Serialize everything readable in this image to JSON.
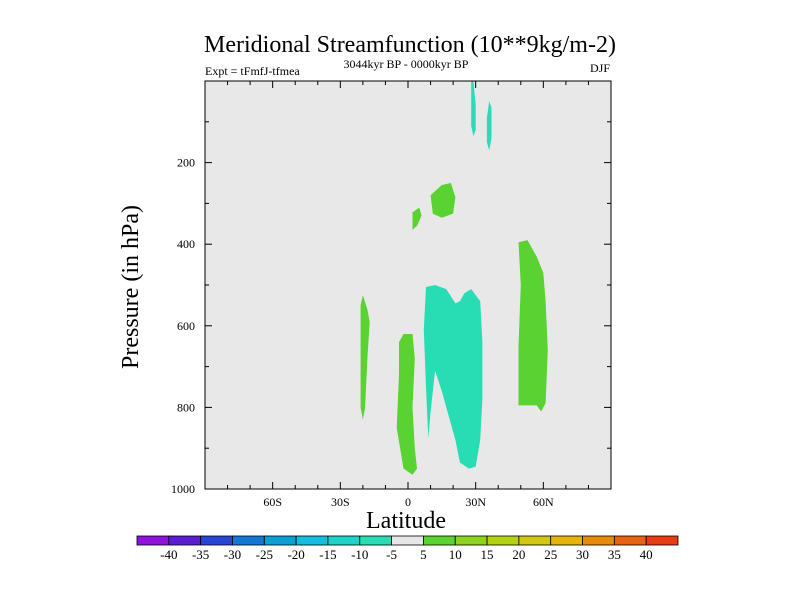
{
  "chart_data": {
    "type": "contour",
    "title": "Meridional Streamfunction (10**9kg/m-2)",
    "left_label": "Expt = tFmfJ-tfmea",
    "center_label": "3044kyr BP - 0000kyr BP",
    "right_label": "DJF",
    "xlabel": "Latitude",
    "ylabel": "Pressure (in hPa)",
    "xlim": [
      -90,
      90
    ],
    "ylim": [
      1000,
      0
    ],
    "x_ticks": [
      {
        "value": -60,
        "label": "60S"
      },
      {
        "value": -30,
        "label": "30S"
      },
      {
        "value": 0,
        "label": "0"
      },
      {
        "value": 30,
        "label": "30N"
      },
      {
        "value": 60,
        "label": "60N"
      }
    ],
    "y_ticks": [
      {
        "value": 200,
        "label": "200"
      },
      {
        "value": 400,
        "label": "400"
      },
      {
        "value": 600,
        "label": "600"
      },
      {
        "value": 800,
        "label": "800"
      },
      {
        "value": 1000,
        "label": "1000"
      }
    ],
    "background_color": "#e8e8e8",
    "colorbar": {
      "levels": [
        "-40",
        "-35",
        "-30",
        "-25",
        "-20",
        "-15",
        "-10",
        "-5",
        "5",
        "10",
        "15",
        "20",
        "25",
        "30",
        "35",
        "40"
      ],
      "colors": [
        "#8c14dc",
        "#5a1ed2",
        "#2846d2",
        "#1478d2",
        "#0aa0d2",
        "#14bedc",
        "#1ed2c8",
        "#28dcb4",
        "#e6e6e6",
        "#5ad232",
        "#8cd21e",
        "#b4d214",
        "#d2c814",
        "#e6b40a",
        "#e68c0a",
        "#e66414",
        "#e63c14"
      ]
    },
    "regions": [
      {
        "name": "sh-positive-cell",
        "color": "#5ad232",
        "points": [
          [
            -21,
            550
          ],
          [
            -20,
            525
          ],
          [
            -18,
            560
          ],
          [
            -17,
            590
          ],
          [
            -18,
            680
          ],
          [
            -19,
            800
          ],
          [
            -20,
            830
          ],
          [
            -21,
            800
          ],
          [
            -21,
            620
          ]
        ]
      },
      {
        "name": "equatorial-positive-cell",
        "color": "#5ad232",
        "points": [
          [
            -4,
            640
          ],
          [
            -2,
            620
          ],
          [
            2,
            620
          ],
          [
            3,
            680
          ],
          [
            2,
            800
          ],
          [
            3,
            900
          ],
          [
            4,
            950
          ],
          [
            2,
            965
          ],
          [
            -2,
            950
          ],
          [
            -5,
            850
          ],
          [
            -4,
            720
          ]
        ]
      },
      {
        "name": "upper-positive-blob-a",
        "color": "#5ad232",
        "points": [
          [
            10,
            280
          ],
          [
            15,
            255
          ],
          [
            19,
            250
          ],
          [
            21,
            285
          ],
          [
            20,
            325
          ],
          [
            15,
            335
          ],
          [
            11,
            325
          ]
        ]
      },
      {
        "name": "upper-positive-blob-b",
        "color": "#5ad232",
        "points": [
          [
            2,
            365
          ],
          [
            4,
            355
          ],
          [
            6,
            330
          ],
          [
            5,
            310
          ],
          [
            2,
            322
          ]
        ]
      },
      {
        "name": "nh-positive-cell",
        "color": "#5ad232",
        "points": [
          [
            49,
            395
          ],
          [
            53,
            390
          ],
          [
            57,
            430
          ],
          [
            60,
            470
          ],
          [
            61,
            540
          ],
          [
            62,
            660
          ],
          [
            61,
            790
          ],
          [
            59,
            810
          ],
          [
            57,
            795
          ],
          [
            52,
            795
          ],
          [
            49,
            795
          ],
          [
            49,
            650
          ],
          [
            50,
            500
          ]
        ]
      },
      {
        "name": "nh-negative-cell",
        "color": "#28dcb4",
        "points": [
          [
            8,
            505
          ],
          [
            12,
            500
          ],
          [
            17,
            510
          ],
          [
            21,
            545
          ],
          [
            23,
            540
          ],
          [
            25,
            520
          ],
          [
            28,
            510
          ],
          [
            32,
            540
          ],
          [
            33,
            640
          ],
          [
            33,
            780
          ],
          [
            32,
            880
          ],
          [
            30,
            945
          ],
          [
            27,
            950
          ],
          [
            23,
            935
          ],
          [
            21,
            880
          ],
          [
            18,
            820
          ],
          [
            15,
            760
          ],
          [
            12,
            710
          ],
          [
            10,
            810
          ],
          [
            9,
            875
          ],
          [
            8,
            750
          ],
          [
            7,
            610
          ]
        ]
      },
      {
        "name": "strat-negative-a",
        "color": "#28dcb4",
        "points": [
          [
            28,
            0
          ],
          [
            29,
            0
          ],
          [
            30,
            60
          ],
          [
            30,
            120
          ],
          [
            29,
            135
          ],
          [
            28,
            110
          ],
          [
            28,
            60
          ]
        ]
      },
      {
        "name": "strat-negative-b",
        "color": "#28dcb4",
        "points": [
          [
            36,
            50
          ],
          [
            37,
            65
          ],
          [
            37,
            140
          ],
          [
            36,
            170
          ],
          [
            35,
            150
          ],
          [
            35,
            90
          ]
        ]
      }
    ]
  }
}
